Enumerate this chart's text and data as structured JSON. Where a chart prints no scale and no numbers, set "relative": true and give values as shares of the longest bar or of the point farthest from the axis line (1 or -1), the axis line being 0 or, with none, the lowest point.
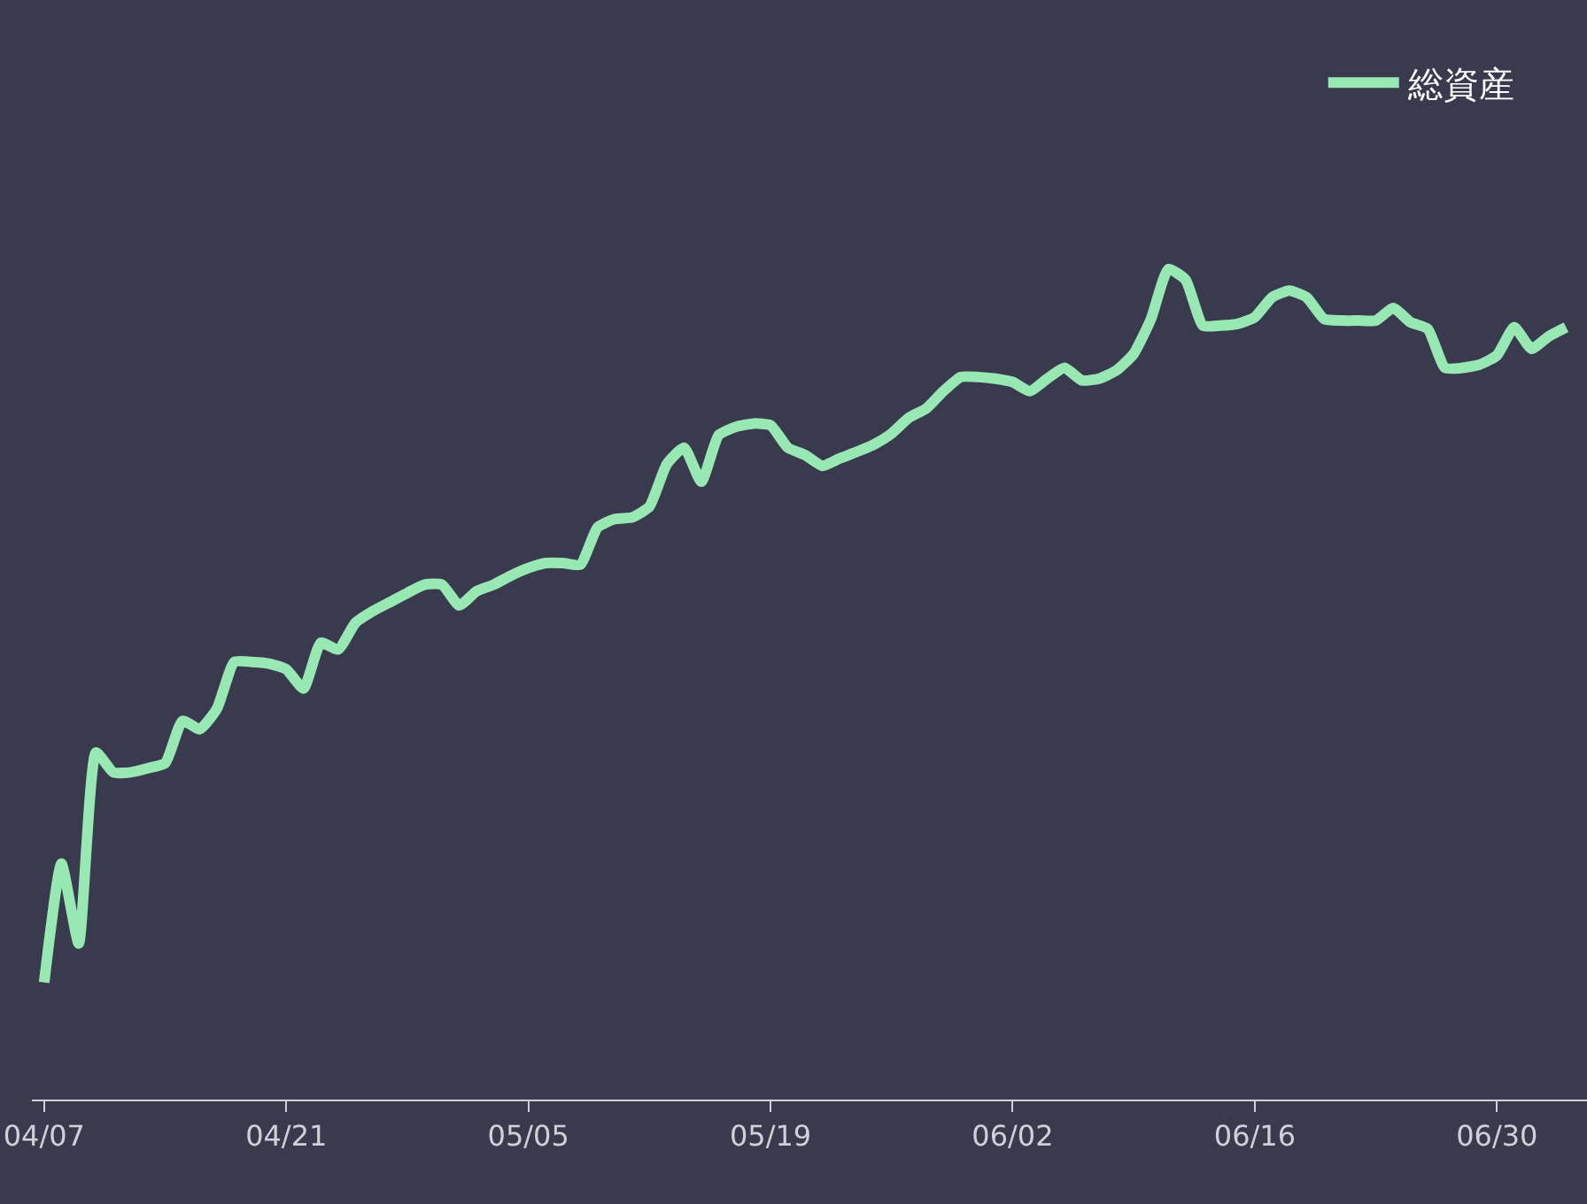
{
  "chart_data": {
    "type": "line",
    "relative": true,
    "legend": "top right",
    "x": [
      "--04-07",
      "--04-08",
      "--04-09",
      "--04-10",
      "--04-11",
      "--04-12",
      "--04-13",
      "--04-14",
      "--04-15",
      "--04-16",
      "--04-17",
      "--04-18",
      "--04-19",
      "--04-20",
      "--04-21",
      "--04-22",
      "--04-23",
      "--04-24",
      "--04-25",
      "--04-26",
      "--04-27",
      "--04-28",
      "--04-29",
      "--04-30",
      "--05-01",
      "--05-02",
      "--05-03",
      "--05-04",
      "--05-05",
      "--05-06",
      "--05-07",
      "--05-08",
      "--05-09",
      "--05-10",
      "--05-11",
      "--05-12",
      "--05-13",
      "--05-14",
      "--05-15",
      "--05-16",
      "--05-17",
      "--05-18",
      "--05-19",
      "--05-20",
      "--05-21",
      "--05-22",
      "--05-23",
      "--05-24",
      "--05-25",
      "--05-26",
      "--05-27",
      "--05-28",
      "--05-29",
      "--05-30",
      "--05-31",
      "--06-01",
      "--06-02",
      "--06-03",
      "--06-04",
      "--06-05",
      "--06-06",
      "--06-07",
      "--06-08",
      "--06-09",
      "--06-10",
      "--06-11",
      "--06-12",
      "--06-13",
      "--06-14",
      "--06-15",
      "--06-16",
      "--06-17",
      "--06-18",
      "--06-19",
      "--06-20",
      "--06-21",
      "--06-22",
      "--06-23",
      "--06-24",
      "--06-25",
      "--06-26",
      "--06-27",
      "--06-28",
      "--06-29",
      "--06-30",
      "--07-01",
      "--07-02",
      "--07-03",
      "--07-04"
    ],
    "series": [
      {
        "name": "総資産",
        "color": "#98e8b4",
        "values": [
          0.141,
          0.284,
          0.188,
          0.418,
          0.394,
          0.394,
          0.399,
          0.405,
          0.456,
          0.446,
          0.471,
          0.527,
          0.527,
          0.525,
          0.518,
          0.495,
          0.55,
          0.542,
          0.574,
          0.588,
          0.599,
          0.61,
          0.62,
          0.62,
          0.595,
          0.612,
          0.62,
          0.631,
          0.64,
          0.646,
          0.646,
          0.644,
          0.689,
          0.699,
          0.701,
          0.714,
          0.765,
          0.785,
          0.744,
          0.8,
          0.81,
          0.814,
          0.812,
          0.785,
          0.776,
          0.763,
          0.772,
          0.78,
          0.789,
          0.802,
          0.821,
          0.832,
          0.853,
          0.87,
          0.87,
          0.868,
          0.864,
          0.853,
          0.868,
          0.881,
          0.866,
          0.868,
          0.878,
          0.898,
          0.94,
          1,
          0.987,
          0.932,
          0.932,
          0.934,
          0.942,
          0.966,
          0.974,
          0.966,
          0.94,
          0.938,
          0.938,
          0.938,
          0.953,
          0.936,
          0.928,
          0.881,
          0.881,
          0.885,
          0.896,
          0.93,
          0.904,
          0.919,
          0.93
        ]
      }
    ],
    "xlim": [
      "--04-06T07:00",
      "--07-05T05:00"
    ],
    "xticks": [
      {
        "value": "--04-07",
        "label": "04/07"
      },
      {
        "value": "--04-21",
        "label": "04/21"
      },
      {
        "value": "--05-05",
        "label": "05/05"
      },
      {
        "value": "--05-19",
        "label": "05/19"
      },
      {
        "value": "--06-02",
        "label": "06/02"
      },
      {
        "value": "--06-16",
        "label": "06/16"
      },
      {
        "value": "--06-30",
        "label": "06/30"
      }
    ]
  }
}
